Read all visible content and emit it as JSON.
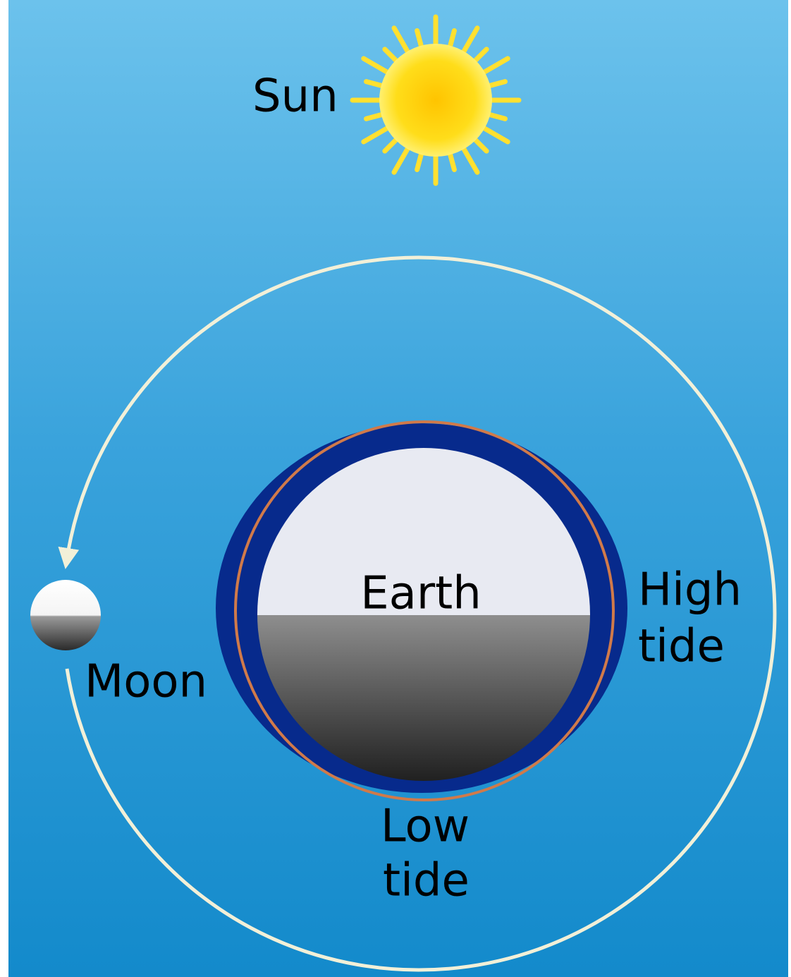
{
  "diagram": {
    "sun": {
      "label": "Sun"
    },
    "earth": {
      "label": "Earth"
    },
    "moon": {
      "label": "Moon"
    },
    "high_tide": {
      "lines": [
        "High",
        "tide"
      ]
    },
    "low_tide": {
      "lines": [
        "Low",
        "tide"
      ]
    }
  }
}
